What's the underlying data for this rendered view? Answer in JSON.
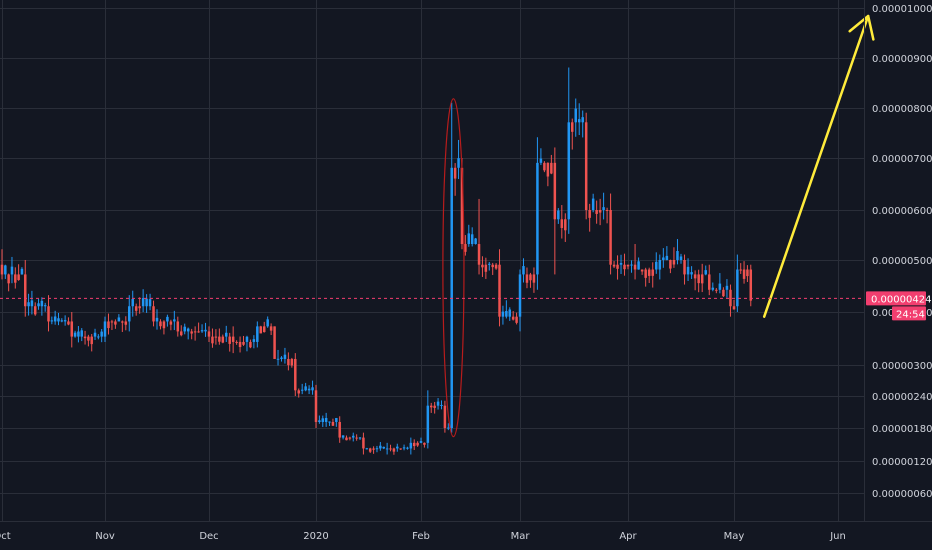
{
  "chart_data": {
    "type": "candlestick",
    "title": "",
    "xlabel": "",
    "ylabel": "",
    "y_scale": "log",
    "ylim": [
      5e-07,
      1e-06
    ],
    "x_tick_labels": [
      "Oct",
      "Nov",
      "Dec",
      "2020",
      "Feb",
      "Mar",
      "Apr",
      "May",
      "Jun"
    ],
    "y_tick_labels": [
      "0.00001000",
      "0.00000900",
      "0.00000800",
      "0.00000700",
      "0.00000600",
      "0.00000500",
      "0.00000400",
      "0.00000300",
      "0.00000240",
      "0.00000180",
      "0.00000120",
      "0.00000060"
    ],
    "y_tick_values": [
      1e-05,
      9e-06,
      8e-06,
      7e-06,
      6e-06,
      5e-06,
      4e-06,
      3e-06,
      2.4e-06,
      1.8e-06,
      1.2e-06,
      6e-07
    ],
    "grid": true,
    "current_price": {
      "value": 4.24e-06,
      "label": "0.00000424",
      "countdown": "24:54",
      "color": "#f23e6f"
    },
    "colors": {
      "background": "#131722",
      "grid": "#2a2e39",
      "up": "#2196f3",
      "down": "#ef5350",
      "highlight_ellipse": "#b71c1c",
      "arrow": "#ffeb3b"
    },
    "annotations": [
      {
        "type": "ellipse",
        "description": "pump candle highlight",
        "date_range": [
          "2020-02-08",
          "2020-02-13"
        ],
        "price_range": [
          1.7e-06,
          8.1e-06
        ]
      },
      {
        "type": "arrow",
        "from": {
          "date": "2020-05-10",
          "price": 3.9e-06
        },
        "to": {
          "date": "2020-06-10",
          "price": 1e-05
        }
      }
    ],
    "series": [
      {
        "ohlc_keypoints": [
          [
            "2019-09-26",
            4.8e-06,
            5e-06,
            4.6e-06,
            4.9e-06
          ],
          [
            "2019-10-01",
            4.9e-06,
            5.2e-06,
            4.6e-06,
            4.7e-06
          ],
          [
            "2019-10-08",
            4.7e-06,
            5e-06,
            3.9e-06,
            4.1e-06
          ],
          [
            "2019-10-15",
            4.1e-06,
            4.3e-06,
            3.6e-06,
            3.8e-06
          ],
          [
            "2019-10-22",
            3.8e-06,
            4e-06,
            3.3e-06,
            3.5e-06
          ],
          [
            "2019-11-01",
            3.5e-06,
            3.9e-06,
            3.4e-06,
            3.8e-06
          ],
          [
            "2019-11-08",
            3.8e-06,
            4.3e-06,
            3.6e-06,
            4.1e-06
          ],
          [
            "2019-11-15",
            4.1e-06,
            4.2e-06,
            3.7e-06,
            3.8e-06
          ],
          [
            "2019-11-22",
            3.8e-06,
            3.9e-06,
            3.5e-06,
            3.6e-06
          ],
          [
            "2019-12-01",
            3.6e-06,
            3.7e-06,
            3.4e-06,
            3.5e-06
          ],
          [
            "2019-12-08",
            3.5e-06,
            3.7e-06,
            3.2e-06,
            3.4e-06
          ],
          [
            "2019-12-15",
            3.4e-06,
            3.8e-06,
            3.3e-06,
            3.7e-06
          ],
          [
            "2019-12-20",
            3.7e-06,
            3.7e-06,
            3.1e-06,
            3.1e-06
          ],
          [
            "2019-12-26",
            3.1e-06,
            3.2e-06,
            2.4e-06,
            2.5e-06
          ],
          [
            "2020-01-01",
            2.5e-06,
            2.6e-06,
            1.8e-06,
            1.9e-06
          ],
          [
            "2020-01-08",
            1.9e-06,
            2e-06,
            1.5e-06,
            1.6e-06
          ],
          [
            "2020-01-15",
            1.6e-06,
            1.7e-06,
            1.3e-06,
            1.4e-06
          ],
          [
            "2020-01-22",
            1.4e-06,
            1.5e-06,
            1.3e-06,
            1.4e-06
          ],
          [
            "2020-01-29",
            1.4e-06,
            1.6e-06,
            1.3e-06,
            1.5e-06
          ],
          [
            "2020-02-03",
            1.5e-06,
            2.5e-06,
            1.4e-06,
            2.2e-06
          ],
          [
            "2020-02-08",
            2.2e-06,
            2.3e-06,
            1.7e-06,
            1.8e-06
          ],
          [
            "2020-02-10",
            1.8e-06,
            8.1e-06,
            1.7e-06,
            6.8e-06
          ],
          [
            "2020-02-13",
            6.8e-06,
            7e-06,
            5.2e-06,
            5.3e-06
          ],
          [
            "2020-02-18",
            5.3e-06,
            6.2e-06,
            4.7e-06,
            4.9e-06
          ],
          [
            "2020-02-24",
            4.9e-06,
            5.2e-06,
            3.7e-06,
            3.9e-06
          ],
          [
            "2020-03-01",
            3.9e-06,
            4.8e-06,
            3.6e-06,
            4.7e-06
          ],
          [
            "2020-03-06",
            4.7e-06,
            7.4e-06,
            4.4e-06,
            6.9e-06
          ],
          [
            "2020-03-11",
            6.9e-06,
            7.2e-06,
            4.7e-06,
            5.8e-06
          ],
          [
            "2020-03-15",
            5.8e-06,
            8.8e-06,
            5.5e-06,
            7.7e-06
          ],
          [
            "2020-03-20",
            7.7e-06,
            7.9e-06,
            5.8e-06,
            6e-06
          ],
          [
            "2020-03-27",
            6e-06,
            6.3e-06,
            4.7e-06,
            4.9e-06
          ],
          [
            "2020-04-03",
            4.9e-06,
            5.3e-06,
            4.6e-06,
            4.8e-06
          ],
          [
            "2020-04-10",
            4.8e-06,
            5.1e-06,
            4.6e-06,
            5e-06
          ],
          [
            "2020-04-17",
            5e-06,
            5.1e-06,
            4.5e-06,
            4.7e-06
          ],
          [
            "2020-04-24",
            4.7e-06,
            4.9e-06,
            4.3e-06,
            4.4e-06
          ],
          [
            "2020-04-30",
            4.4e-06,
            4.5e-06,
            3.9e-06,
            4.1e-06
          ],
          [
            "2020-05-02",
            4.1e-06,
            5.1e-06,
            4e-06,
            4.8e-06
          ],
          [
            "2020-05-06",
            4.8e-06,
            4.9e-06,
            4.1e-06,
            4.2e-06
          ]
        ]
      }
    ]
  }
}
